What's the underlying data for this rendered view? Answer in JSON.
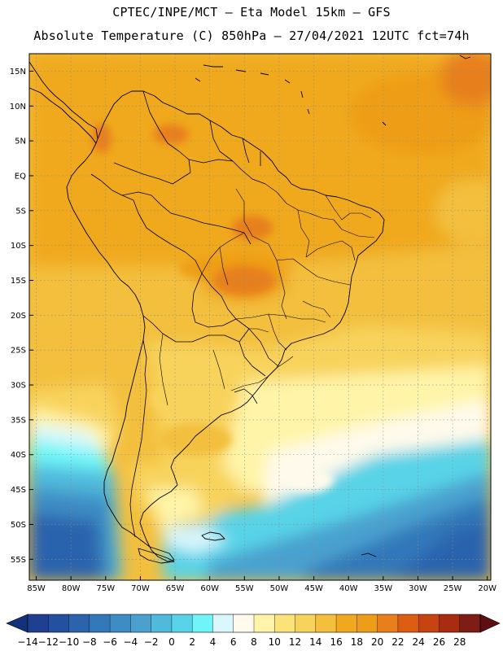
{
  "header": {
    "line1": "CPTEC/INPE/MCT —  Eta Model 15km — GFS",
    "line2": "Absolute Temperature (C) 850hPa — 27/04/2021 12UTC fct=74h"
  },
  "map": {
    "lat_labels": [
      "15N",
      "10N",
      "5N",
      "EQ",
      "5S",
      "10S",
      "15S",
      "20S",
      "25S",
      "30S",
      "35S",
      "40S",
      "45S",
      "50S",
      "55S"
    ],
    "lat_values": [
      15,
      10,
      5,
      0,
      -5,
      -10,
      -15,
      -20,
      -25,
      -30,
      -35,
      -40,
      -45,
      -50,
      -55
    ],
    "lon_labels": [
      "85W",
      "80W",
      "75W",
      "70W",
      "65W",
      "60W",
      "55W",
      "50W",
      "45W",
      "40W",
      "35W",
      "30W",
      "25W",
      "20W"
    ],
    "lon_values": [
      -85,
      -80,
      -75,
      -70,
      -65,
      -60,
      -55,
      -50,
      -45,
      -40,
      -35,
      -30,
      -25,
      -20
    ],
    "lon_range": [
      -86,
      -19.5
    ],
    "lat_range": [
      -58,
      17.5
    ]
  },
  "colorbar": {
    "labels": [
      "-14",
      "-12",
      "-10",
      "-8",
      "-6",
      "-4",
      "-2",
      "0",
      "2",
      "4",
      "6",
      "8",
      "10",
      "12",
      "14",
      "16",
      "18",
      "20",
      "22",
      "24",
      "26",
      "28"
    ],
    "colors": [
      "#1f3f91",
      "#23519f",
      "#2b64ad",
      "#3378b9",
      "#3e8cc4",
      "#4aa1cf",
      "#4fbadc",
      "#58d3e7",
      "#6ff5f7",
      "#d9f7fc",
      "#fffaeb",
      "#fff4a8",
      "#fbe27a",
      "#f8d35c",
      "#f3bf3d",
      "#f0a91e",
      "#ee9d18",
      "#e77f1c",
      "#dc5d14",
      "#c84312",
      "#a82c10",
      "#7d1d13"
    ],
    "min_color": "#14327a",
    "max_color": "#5e0d12"
  }
}
